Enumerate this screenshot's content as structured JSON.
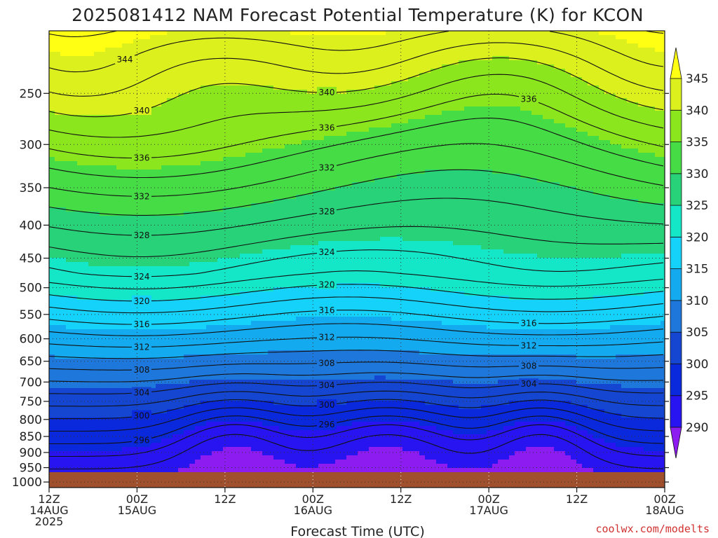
{
  "chart_data": {
    "type": "heatmap",
    "title": "2025081412 NAM Forecast Potential Temperature (K) for KCON",
    "xlabel": "Forecast Time (UTC)",
    "ylabel": "",
    "y_scale": "log-pressure",
    "y_ticks": [
      250,
      300,
      350,
      400,
      450,
      500,
      550,
      600,
      650,
      700,
      750,
      800,
      850,
      900,
      950,
      1000
    ],
    "y_tick_labels": [
      "250",
      "300",
      "350",
      "400",
      "450",
      "500",
      "550",
      "600",
      "650",
      "700",
      "750",
      "800",
      "850",
      "900",
      "950",
      "1000"
    ],
    "ylim": [
      1020,
      200
    ],
    "x_ticks": [
      {
        "hour": 0,
        "l1": "12Z",
        "l2": "14AUG",
        "l3": "2025"
      },
      {
        "hour": 12,
        "l1": "00Z",
        "l2": "15AUG",
        "l3": ""
      },
      {
        "hour": 24,
        "l1": "12Z",
        "l2": "",
        "l3": ""
      },
      {
        "hour": 36,
        "l1": "00Z",
        "l2": "16AUG",
        "l3": ""
      },
      {
        "hour": 48,
        "l1": "12Z",
        "l2": "",
        "l3": ""
      },
      {
        "hour": 60,
        "l1": "00Z",
        "l2": "17AUG",
        "l3": ""
      },
      {
        "hour": 72,
        "l1": "12Z",
        "l2": "",
        "l3": ""
      },
      {
        "hour": 84,
        "l1": "00Z",
        "l2": "18AUG",
        "l3": ""
      }
    ],
    "xlim": [
      0,
      84
    ],
    "colorbar": {
      "levels": [
        290,
        295,
        300,
        305,
        310,
        315,
        320,
        325,
        330,
        335,
        340,
        345
      ],
      "labels": [
        "290",
        "295",
        "300",
        "305",
        "310",
        "315",
        "320",
        "325",
        "330",
        "335",
        "340",
        "345"
      ],
      "colors": [
        "#8c1cf0",
        "#2814f0",
        "#0a28dc",
        "#1446d2",
        "#1e78dc",
        "#14aaf0",
        "#14d2fa",
        "#14e6c8",
        "#28d278",
        "#46dc46",
        "#8ce61e",
        "#dcf01e",
        "#ffff14"
      ],
      "under_color": "#8c1cf0",
      "over_color": "#ffff14"
    },
    "contour_interval": 2,
    "contour_labels": [
      "340",
      "344",
      "336",
      "340",
      "336",
      "336",
      "332",
      "328",
      "328",
      "332",
      "324",
      "324",
      "320",
      "320",
      "316",
      "316",
      "316",
      "312",
      "312",
      "312",
      "308",
      "308",
      "308",
      "304",
      "304",
      "304",
      "300",
      "300",
      "296",
      "296"
    ],
    "surface_band": "ground (brown)",
    "grid": true,
    "credit": "coolwx.com/modelts"
  }
}
